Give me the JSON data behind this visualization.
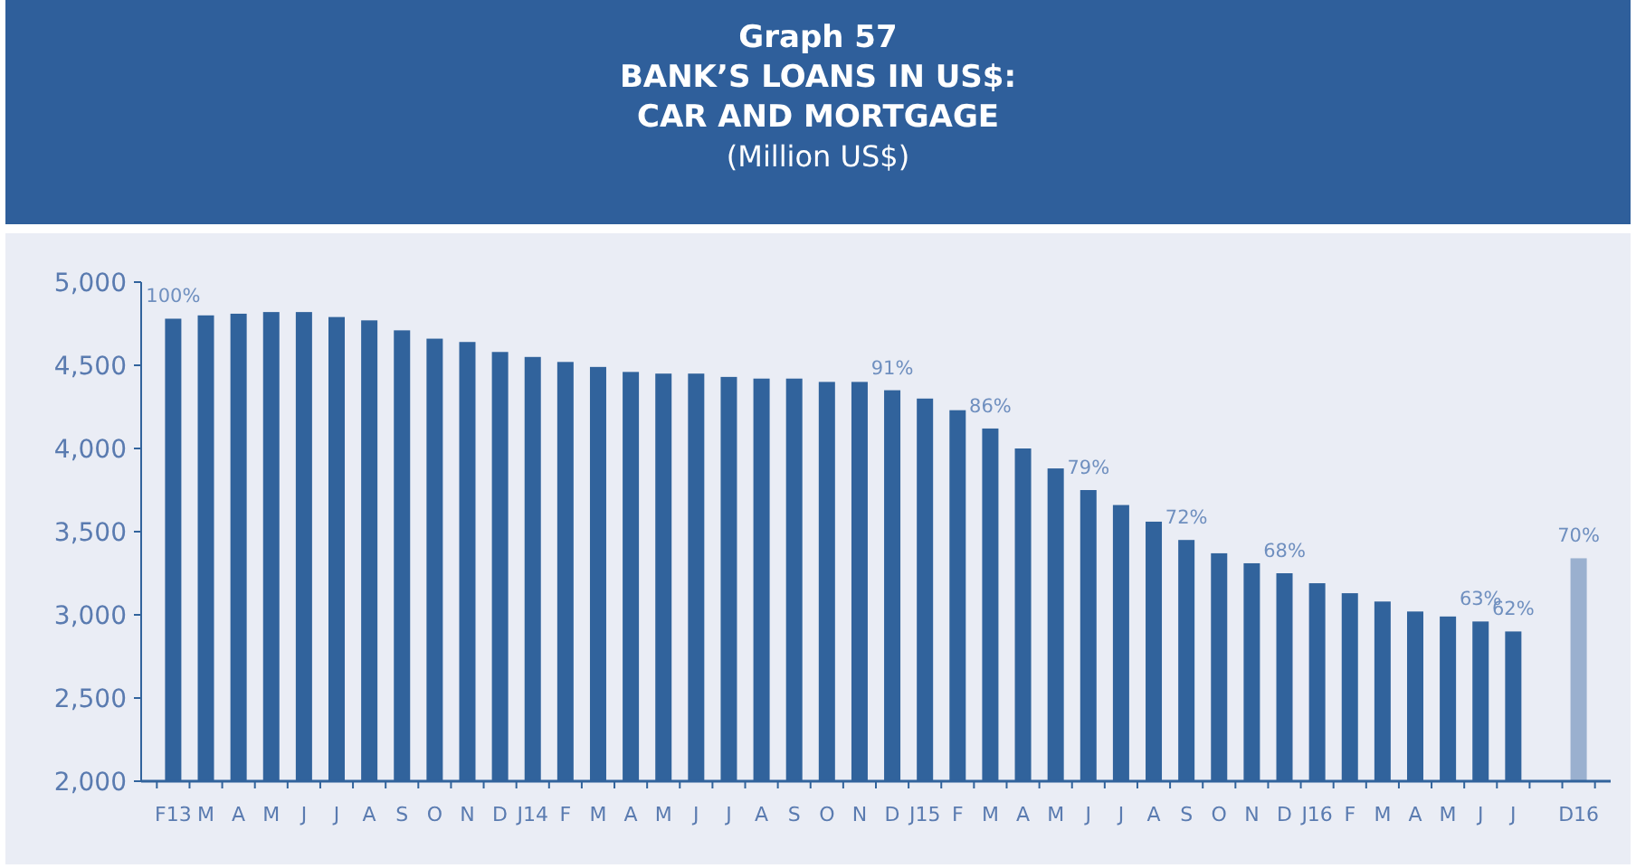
{
  "chart_data": {
    "type": "bar",
    "title": "Graph 57\nBANK’S LOANS IN US$:\nCAR AND MORTGAGE",
    "subtitle": "(Million US$)",
    "categories": [
      "F13",
      "M",
      "A",
      "M",
      "J",
      "J",
      "A",
      "S",
      "O",
      "N",
      "D",
      "J14",
      "F",
      "M",
      "A",
      "M",
      "J",
      "J",
      "A",
      "S",
      "O",
      "N",
      "D",
      "J15",
      "F",
      "M",
      "A",
      "M",
      "J",
      "J",
      "A",
      "S",
      "O",
      "N",
      "D",
      "J16",
      "F",
      "M",
      "A",
      "M",
      "J",
      "J",
      null,
      "D16"
    ],
    "values": [
      4780,
      4800,
      4810,
      4820,
      4820,
      4790,
      4770,
      4710,
      4660,
      4640,
      4580,
      4550,
      4520,
      4490,
      4460,
      4450,
      4450,
      4430,
      4420,
      4420,
      4400,
      4400,
      4350,
      4300,
      4230,
      4120,
      4000,
      3880,
      3750,
      3660,
      3560,
      3450,
      3370,
      3310,
      3250,
      3190,
      3130,
      3080,
      3020,
      2990,
      2960,
      2900,
      null,
      3340
    ],
    "colors": [
      "#31639c",
      "#31639c",
      "#31639c",
      "#31639c",
      "#31639c",
      "#31639c",
      "#31639c",
      "#31639c",
      "#31639c",
      "#31639c",
      "#31639c",
      "#31639c",
      "#31639c",
      "#31639c",
      "#31639c",
      "#31639c",
      "#31639c",
      "#31639c",
      "#31639c",
      "#31639c",
      "#31639c",
      "#31639c",
      "#31639c",
      "#31639c",
      "#31639c",
      "#31639c",
      "#31639c",
      "#31639c",
      "#31639c",
      "#31639c",
      "#31639c",
      "#31639c",
      "#31639c",
      "#31639c",
      "#31639c",
      "#31639c",
      "#31639c",
      "#31639c",
      "#31639c",
      "#31639c",
      "#31639c",
      "#31639c",
      null,
      "#9ab0cf"
    ],
    "annotations": [
      {
        "text": "100%",
        "x": "F13",
        "y": 4780
      },
      {
        "text": "91%",
        "y": 4350
      },
      {
        "text": "86%",
        "y": 4120
      },
      {
        "text": "79%",
        "y": 3750
      },
      {
        "text": "72%",
        "y": 3450
      },
      {
        "text": "68%",
        "y": 3250
      },
      {
        "text": "63%",
        "y": 2960
      },
      {
        "text": "62%",
        "y": 2900
      },
      {
        "text": "70%",
        "x": "D16",
        "y": 3340
      }
    ],
    "ylim": [
      2000,
      5000
    ],
    "yticks": [
      {
        "value": 2000,
        "label": "2,000"
      },
      {
        "value": 2500,
        "label": "2,500"
      },
      {
        "value": 3000,
        "label": "3,000"
      },
      {
        "value": 3500,
        "label": "3,500"
      },
      {
        "value": 4000,
        "label": "4,000"
      },
      {
        "value": 4500,
        "label": "4,500"
      },
      {
        "value": 5000,
        "label": "5,000"
      }
    ],
    "grid": false
  }
}
